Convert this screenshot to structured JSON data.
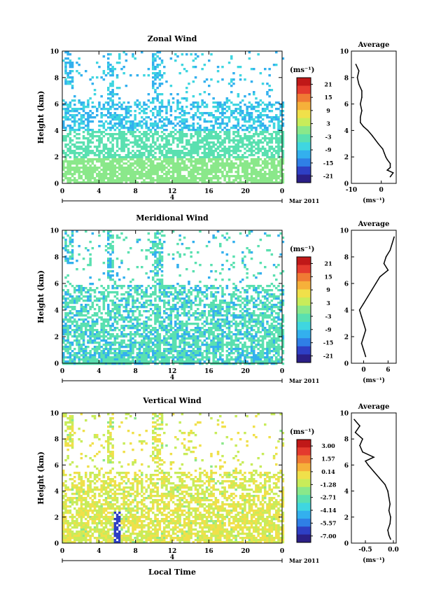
{
  "colors": {
    "scale": [
      "#2b1f86",
      "#2e3fc4",
      "#2f7fe6",
      "#33b0ee",
      "#3fd6e0",
      "#5ae0b0",
      "#8ae88a",
      "#c8ec5a",
      "#f0e04a",
      "#f6b03a",
      "#f07a34",
      "#e43a2e",
      "#c01818"
    ]
  },
  "date_label": "Mar 2011",
  "avg_title": "Average",
  "xlabel_bottom": "Local Time",
  "chart_data": [
    {
      "type": "heatmap",
      "title": "Zonal Wind",
      "ylabel": "Height (km)",
      "ylim": [
        0,
        10
      ],
      "yticks": [
        "0",
        "2",
        "4",
        "6",
        "8",
        "10"
      ],
      "xticks": [
        "0",
        "4",
        "8",
        "12",
        "16",
        "20",
        "0"
      ],
      "day_label": "4",
      "colorbar": {
        "unit": "(ms⁻¹)",
        "ticks": [
          "21",
          "15",
          "9",
          "3",
          "-3",
          "-9",
          "-15",
          "-21"
        ]
      },
      "top_cutoff_km": 6.3,
      "noise_base": 0.5,
      "base_level": 4,
      "profile": {
        "xlim": [
          -10,
          5
        ],
        "xticks": [
          "-10",
          "0"
        ],
        "xtick_values": [
          -10,
          0
        ],
        "unit": "(ms⁻¹)",
        "heights": [
          0.5,
          0.8,
          1.0,
          1.2,
          1.5,
          1.8,
          2.0,
          2.3,
          2.6,
          3.0,
          3.3,
          3.6,
          4.0,
          4.3,
          4.6,
          5.0,
          5.5,
          6.0,
          6.5,
          7.0,
          7.5,
          8.0,
          8.5,
          9.0
        ],
        "values": [
          3,
          4,
          2,
          3,
          3,
          2,
          1.5,
          1,
          0.5,
          -1,
          -2,
          -3,
          -4.5,
          -6,
          -7,
          -7,
          -6.5,
          -7,
          -6.5,
          -6.5,
          -7.5,
          -8,
          -7.5,
          -8.5
        ]
      }
    },
    {
      "type": "heatmap",
      "title": "Meridional Wind",
      "ylabel": "Height (km)",
      "ylim": [
        0,
        10
      ],
      "yticks": [
        "0",
        "2",
        "4",
        "6",
        "8",
        "10"
      ],
      "xticks": [
        "0",
        "4",
        "8",
        "12",
        "16",
        "20",
        "0"
      ],
      "day_label": "4",
      "colorbar": {
        "unit": "(ms⁻¹)",
        "ticks": [
          "21",
          "15",
          "9",
          "3",
          "-3",
          "-9",
          "-15",
          "-21"
        ]
      },
      "top_cutoff_km": 6.0,
      "noise_base": 0.6,
      "base_level": 5,
      "profile": {
        "xlim": [
          -3,
          8
        ],
        "xticks": [
          "0",
          "6"
        ],
        "xtick_values": [
          0,
          6
        ],
        "unit": "(ms⁻¹)",
        "heights": [
          0.5,
          1.0,
          1.5,
          2.0,
          2.5,
          3.0,
          3.5,
          4.0,
          4.5,
          5.0,
          5.5,
          6.0,
          6.5,
          7.0,
          7.5,
          8.0,
          8.5,
          9.0,
          9.5
        ],
        "values": [
          0.5,
          0,
          -0.5,
          0,
          0.5,
          0,
          -0.5,
          -1,
          0,
          1,
          2,
          3,
          4,
          6,
          5,
          5.5,
          6.5,
          7,
          7.5
        ]
      }
    },
    {
      "type": "heatmap",
      "title": "Vertical Wind",
      "ylabel": "Height (km)",
      "xlabel": "Local Time",
      "ylim": [
        0,
        10
      ],
      "yticks": [
        "0",
        "2",
        "4",
        "6",
        "8",
        "10"
      ],
      "xticks": [
        "0",
        "4",
        "8",
        "12",
        "16",
        "20",
        "0"
      ],
      "day_label": "4",
      "colorbar": {
        "unit": "(ms⁻¹)",
        "ticks": [
          "3.00",
          "1.57",
          "0.14",
          "-1.28",
          "-2.71",
          "-4.14",
          "-5.57",
          "-7.00"
        ]
      },
      "top_cutoff_km": 5.5,
      "noise_base": 0.3,
      "base_level": 7,
      "profile": {
        "xlim": [
          -0.75,
          0.05
        ],
        "xticks": [
          "-0.5",
          "0.0"
        ],
        "xtick_values": [
          -0.5,
          0.0
        ],
        "unit": "(ms⁻¹)",
        "heights": [
          0.3,
          0.6,
          1.0,
          1.5,
          2.0,
          2.5,
          3.0,
          3.5,
          4.0,
          4.5,
          5.0,
          5.5,
          6.0,
          6.3,
          6.6,
          7.0,
          7.5,
          8.0,
          8.5,
          9.0,
          9.5
        ],
        "values": [
          -0.05,
          -0.08,
          -0.1,
          -0.06,
          -0.05,
          -0.08,
          -0.06,
          -0.08,
          -0.1,
          -0.15,
          -0.25,
          -0.35,
          -0.45,
          -0.5,
          -0.35,
          -0.55,
          -0.6,
          -0.55,
          -0.68,
          -0.6,
          -0.7
        ]
      }
    }
  ]
}
